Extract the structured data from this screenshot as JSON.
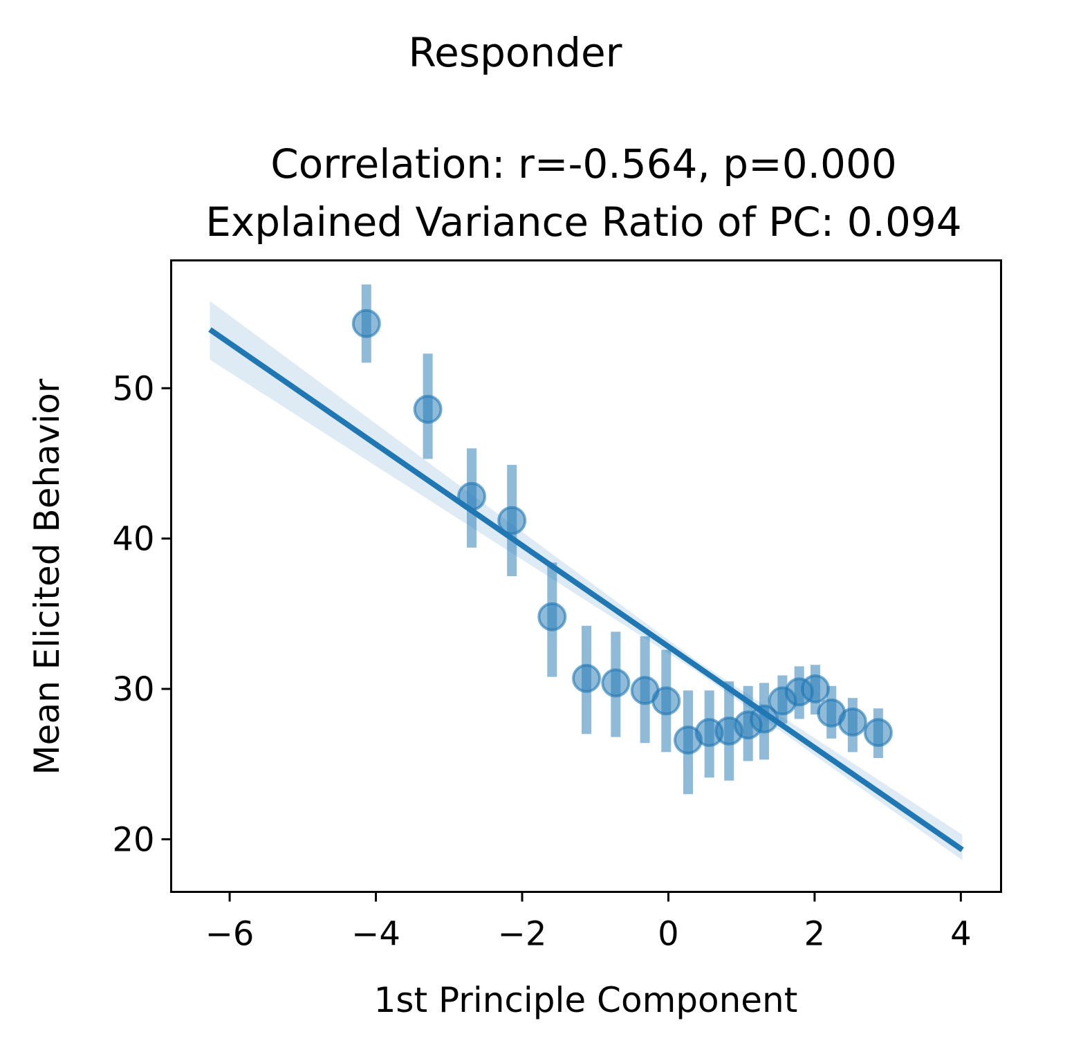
{
  "chart_data": {
    "type": "scatter",
    "suptitle": "Responder",
    "title_lines": [
      "Correlation: r=-0.564, p=0.000",
      "Explained Variance Ratio of PC: 0.094"
    ],
    "xlabel": "1st Principle Component",
    "ylabel": "Mean Elicited Behavior",
    "xlim": [
      -6.8,
      4.55
    ],
    "ylim": [
      16.5,
      58.5
    ],
    "xticks": [
      -6,
      -4,
      -2,
      0,
      2,
      4
    ],
    "xtick_labels": [
      "−6",
      "−4",
      "−2",
      "0",
      "2",
      "4"
    ],
    "yticks": [
      20,
      30,
      40,
      50
    ],
    "ytick_labels": [
      "20",
      "30",
      "40",
      "50"
    ],
    "grid": false,
    "color": "#1f77b4",
    "series": [
      {
        "name": "binned means",
        "points": [
          {
            "x": -4.13,
            "y": 54.3,
            "lo": 51.7,
            "hi": 56.9
          },
          {
            "x": -3.29,
            "y": 48.6,
            "lo": 45.3,
            "hi": 52.3
          },
          {
            "x": -2.69,
            "y": 42.8,
            "lo": 39.4,
            "hi": 46.0
          },
          {
            "x": -2.14,
            "y": 41.2,
            "lo": 37.5,
            "hi": 44.9
          },
          {
            "x": -1.59,
            "y": 34.8,
            "lo": 30.8,
            "hi": 38.4
          },
          {
            "x": -1.12,
            "y": 30.7,
            "lo": 27.0,
            "hi": 34.2
          },
          {
            "x": -0.72,
            "y": 30.4,
            "lo": 26.8,
            "hi": 33.8
          },
          {
            "x": -0.32,
            "y": 29.9,
            "lo": 26.4,
            "hi": 33.5
          },
          {
            "x": -0.03,
            "y": 29.2,
            "lo": 25.8,
            "hi": 32.6
          },
          {
            "x": 0.27,
            "y": 26.6,
            "lo": 23.0,
            "hi": 29.9
          },
          {
            "x": 0.56,
            "y": 27.1,
            "lo": 24.1,
            "hi": 29.9
          },
          {
            "x": 0.83,
            "y": 27.2,
            "lo": 23.9,
            "hi": 30.5
          },
          {
            "x": 1.09,
            "y": 27.6,
            "lo": 25.2,
            "hi": 30.2
          },
          {
            "x": 1.31,
            "y": 28.0,
            "lo": 25.3,
            "hi": 30.4
          },
          {
            "x": 1.56,
            "y": 29.2,
            "lo": 27.7,
            "hi": 30.9
          },
          {
            "x": 1.79,
            "y": 29.8,
            "lo": 28.0,
            "hi": 31.5
          },
          {
            "x": 2.01,
            "y": 30.0,
            "lo": 28.3,
            "hi": 31.6
          },
          {
            "x": 2.23,
            "y": 28.4,
            "lo": 26.7,
            "hi": 30.2
          },
          {
            "x": 2.52,
            "y": 27.8,
            "lo": 25.8,
            "hi": 29.4
          },
          {
            "x": 2.87,
            "y": 27.1,
            "lo": 25.4,
            "hi": 28.7
          }
        ]
      }
    ],
    "regression": {
      "x_start": -6.27,
      "x_end": 4.02,
      "y_start": 53.9,
      "y_end": 19.3,
      "ci_start": [
        51.9,
        55.8
      ],
      "ci_end": [
        18.6,
        20.3
      ],
      "ci_mid_x": 0.4,
      "ci_mid_halfwidth": 0.35
    }
  }
}
